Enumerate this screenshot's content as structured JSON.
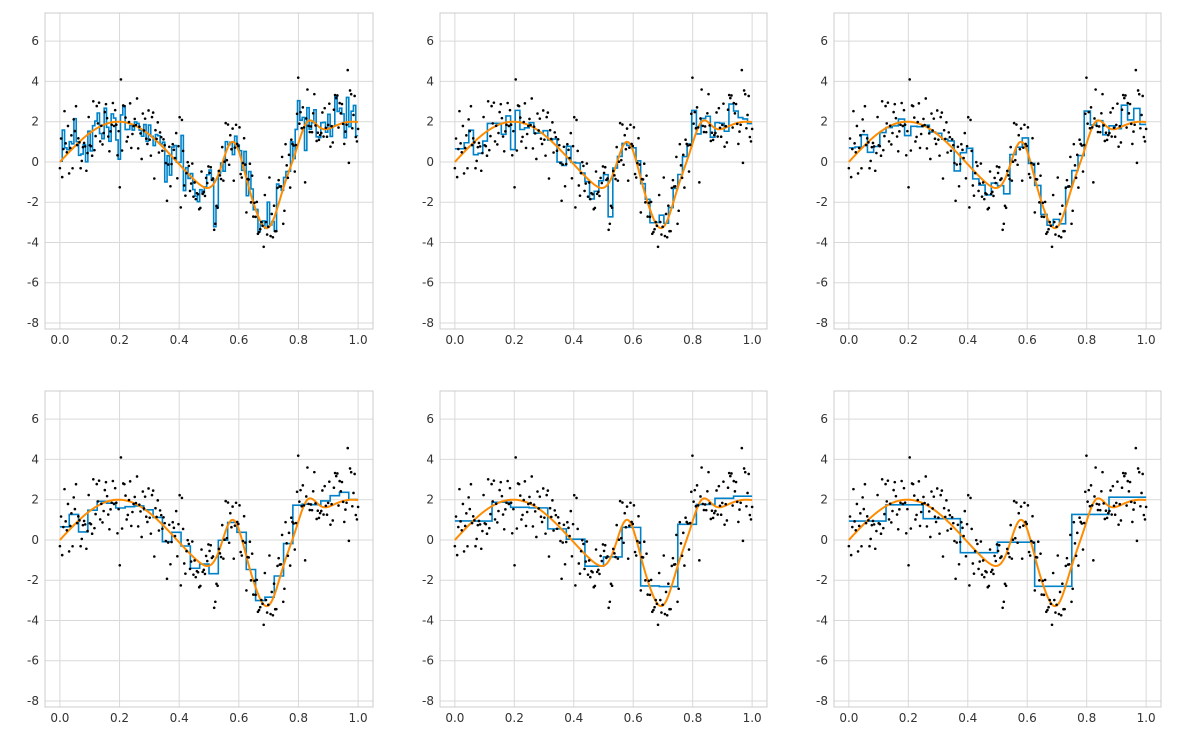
{
  "figure": {
    "layout": "2x3 grid of panels"
  },
  "style": {
    "background": "#ffffff",
    "grid_color": "#d9d9d9",
    "frame_color": "#cccccc",
    "step_color": "#0082c8",
    "curve_color": "#ff8c00",
    "point_color": "#000000",
    "tick_label_color": "#333333"
  },
  "chart_data": [
    {
      "type": "line",
      "panel": 1,
      "bins": 128,
      "xlim": [
        -0.05,
        1.05
      ],
      "ylim": [
        -8.3,
        7.4
      ],
      "xticks": [
        "0.0",
        "0.2",
        "0.4",
        "0.6",
        "0.8",
        "1.0"
      ],
      "yticks": [
        "-8",
        "-6",
        "-4",
        "-2",
        "0",
        "2",
        "4",
        "6"
      ],
      "grid": true,
      "legend": "none",
      "series": [
        {
          "kind": "step"
        },
        {
          "kind": "smooth"
        },
        {
          "kind": "scatter"
        }
      ]
    },
    {
      "type": "line",
      "panel": 2,
      "bins": 64,
      "xlim": [
        -0.05,
        1.05
      ],
      "ylim": [
        -8.3,
        7.4
      ],
      "xticks": [
        "0.0",
        "0.2",
        "0.4",
        "0.6",
        "0.8",
        "1.0"
      ],
      "yticks": [
        "-8",
        "-6",
        "-4",
        "-2",
        "0",
        "2",
        "4",
        "6"
      ],
      "grid": true,
      "legend": "none",
      "series": [
        {
          "kind": "step"
        },
        {
          "kind": "smooth"
        },
        {
          "kind": "scatter"
        }
      ]
    },
    {
      "type": "line",
      "panel": 3,
      "bins": 48,
      "xlim": [
        -0.05,
        1.05
      ],
      "ylim": [
        -8.3,
        7.4
      ],
      "xticks": [
        "0.0",
        "0.2",
        "0.4",
        "0.6",
        "0.8",
        "1.0"
      ],
      "yticks": [
        "-8",
        "-6",
        "-4",
        "-2",
        "0",
        "2",
        "4",
        "6"
      ],
      "grid": true,
      "legend": "none",
      "series": [
        {
          "kind": "step"
        },
        {
          "kind": "smooth"
        },
        {
          "kind": "scatter"
        }
      ]
    },
    {
      "type": "line",
      "panel": 4,
      "bins": 32,
      "xlim": [
        -0.05,
        1.05
      ],
      "ylim": [
        -8.3,
        7.4
      ],
      "xticks": [
        "0.0",
        "0.2",
        "0.4",
        "0.6",
        "0.8",
        "1.0"
      ],
      "yticks": [
        "-8",
        "-6",
        "-4",
        "-2",
        "0",
        "2",
        "4",
        "6"
      ],
      "grid": true,
      "legend": "none",
      "series": [
        {
          "kind": "step"
        },
        {
          "kind": "smooth"
        },
        {
          "kind": "scatter"
        }
      ]
    },
    {
      "type": "line",
      "panel": 5,
      "bins": 16,
      "xlim": [
        -0.05,
        1.05
      ],
      "ylim": [
        -8.3,
        7.4
      ],
      "xticks": [
        "0.0",
        "0.2",
        "0.4",
        "0.6",
        "0.8",
        "1.0"
      ],
      "yticks": [
        "-8",
        "-6",
        "-4",
        "-2",
        "0",
        "2",
        "4",
        "6"
      ],
      "grid": true,
      "legend": "none",
      "series": [
        {
          "kind": "step"
        },
        {
          "kind": "smooth"
        },
        {
          "kind": "scatter"
        }
      ]
    },
    {
      "type": "line",
      "panel": 6,
      "bins": 8,
      "xlim": [
        -0.05,
        1.05
      ],
      "ylim": [
        -8.3,
        7.4
      ],
      "xticks": [
        "0.0",
        "0.2",
        "0.4",
        "0.6",
        "0.8",
        "1.0"
      ],
      "yticks": [
        "-8",
        "-6",
        "-4",
        "-2",
        "0",
        "2",
        "4",
        "6"
      ],
      "grid": true,
      "legend": "none",
      "series": [
        {
          "kind": "step"
        },
        {
          "kind": "smooth"
        },
        {
          "kind": "scatter"
        }
      ]
    }
  ]
}
